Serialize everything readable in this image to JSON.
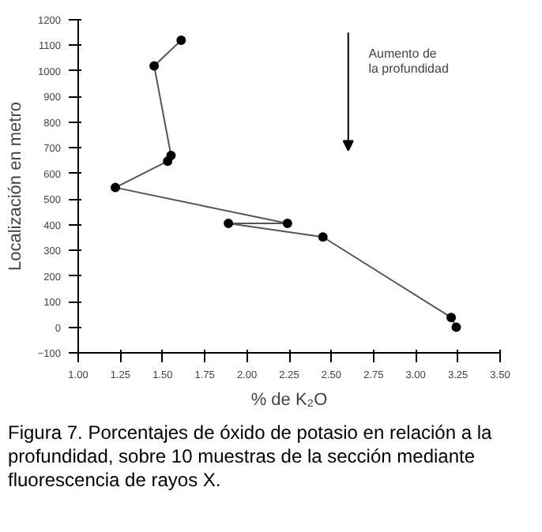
{
  "chart_data": {
    "type": "line",
    "xlabel": "% de K₂O",
    "ylabel": "Localización en metro",
    "x": [
      1.61,
      1.45,
      1.55,
      1.53,
      1.22,
      2.24,
      1.89,
      2.45,
      3.21,
      3.24
    ],
    "series": [
      {
        "color": "#555555",
        "values": [
          1120,
          1020,
          670,
          648,
          545,
          405,
          405,
          352,
          38,
          0
        ]
      }
    ],
    "marker": "circle",
    "line_style": "solid",
    "grid": false,
    "xlim": [
      1.0,
      3.5
    ],
    "xticks": [
      {
        "value": 1.0,
        "label": "1.00"
      },
      1.25,
      {
        "value": 1.5,
        "label": "1.50"
      },
      1.75,
      {
        "value": 2.0,
        "label": "2.00"
      },
      2.25,
      {
        "value": 2.5,
        "label": "2.50"
      },
      2.75,
      {
        "value": 3.0,
        "label": "3.00"
      },
      3.25,
      {
        "value": 3.5,
        "label": "3.50"
      }
    ],
    "ylim": [
      -100,
      1200
    ],
    "yticks": [
      -100,
      0,
      100,
      200,
      300,
      400,
      500,
      600,
      700,
      800,
      900,
      1000,
      1100,
      1200
    ],
    "annotations": [
      "Aumento de la profundidad",
      "Figura 7. Porcentajes de óxido de potasio en relación a la profundidad, sobre 10 muestras de la sección mediante fluorescencia de rayos X."
    ]
  }
}
